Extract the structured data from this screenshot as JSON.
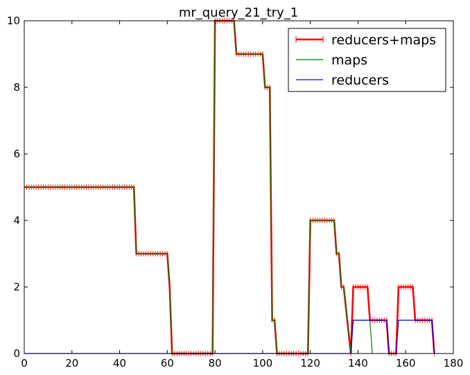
{
  "chart_data": {
    "type": "line",
    "title": "mr_query_21_try_1",
    "xlabel": "",
    "ylabel": "",
    "xlim": [
      0,
      180
    ],
    "ylim": [
      0,
      10
    ],
    "xticks": [
      0,
      20,
      40,
      60,
      80,
      100,
      120,
      140,
      160,
      180
    ],
    "yticks": [
      0,
      2,
      4,
      6,
      8,
      10
    ],
    "grid": false,
    "legend": "top-right",
    "series": [
      {
        "name": "reducers+maps",
        "color": "#ff0000",
        "marker": "+",
        "x": [
          0,
          46,
          47,
          60,
          61,
          62,
          79,
          80,
          88,
          89,
          100,
          101,
          103,
          104,
          105,
          106,
          119,
          120,
          130,
          131,
          132,
          133,
          134,
          137,
          138,
          144,
          145,
          152,
          153,
          156,
          157,
          163,
          164,
          171,
          172
        ],
        "y": [
          5,
          5,
          3,
          3,
          2,
          0,
          0,
          10,
          10,
          9,
          9,
          8,
          8,
          1,
          1,
          0,
          0,
          4,
          4,
          3,
          3,
          2,
          2,
          0,
          2,
          2,
          1,
          1,
          0,
          0,
          2,
          2,
          1,
          1,
          0
        ]
      },
      {
        "name": "maps",
        "color": "#008000",
        "marker": "",
        "x": [
          0,
          46,
          47,
          60,
          61,
          62,
          79,
          80,
          88,
          89,
          100,
          101,
          103,
          104,
          105,
          106,
          119,
          120,
          130,
          131,
          132,
          133,
          134,
          137,
          138,
          145,
          146
        ],
        "y": [
          5,
          5,
          3,
          3,
          2,
          0,
          0,
          10,
          10,
          9,
          9,
          8,
          8,
          1,
          1,
          0,
          0,
          4,
          4,
          3,
          3,
          2,
          2,
          0,
          1,
          1,
          0
        ]
      },
      {
        "name": "reducers",
        "color": "#0000ff",
        "marker": "",
        "x": [
          0,
          137,
          138,
          152,
          153,
          156,
          157,
          171,
          172
        ],
        "y": [
          0,
          0,
          1,
          1,
          0,
          0,
          1,
          1,
          0
        ]
      }
    ]
  }
}
